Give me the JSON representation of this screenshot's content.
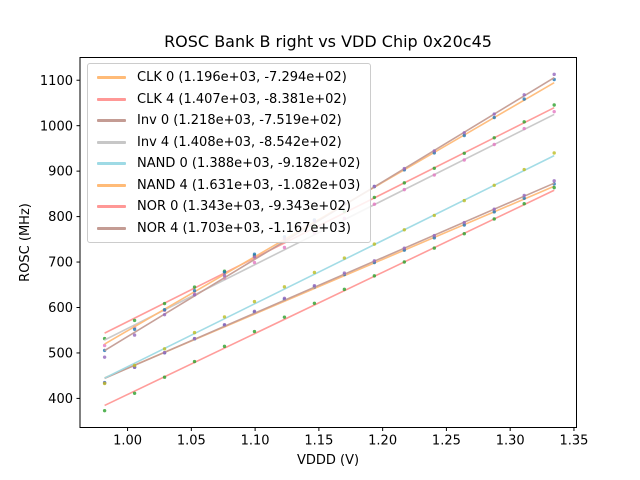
{
  "chart_data": {
    "type": "scatter",
    "title": "ROSC Bank B right vs VDD Chip 0x20c45",
    "xlabel": "VDDD (V)",
    "ylabel": "ROSC (MHz)",
    "grid": false,
    "legend_position": "upper left",
    "xlim": [
      0.9627,
      1.352
    ],
    "ylim": [
      336,
      1150
    ],
    "x_ticks": [
      "1.00",
      "1.05",
      "1.10",
      "1.15",
      "1.20",
      "1.25",
      "1.30",
      "1.35"
    ],
    "y_ticks": [
      "400",
      "500",
      "600",
      "700",
      "800",
      "900",
      "1000",
      "1100"
    ],
    "x": [
      0.982,
      1.0055,
      1.029,
      1.0525,
      1.076,
      1.0995,
      1.123,
      1.1465,
      1.17,
      1.1935,
      1.217,
      1.2405,
      1.264,
      1.2875,
      1.311,
      1.3345
    ],
    "series": [
      {
        "name": "CLK 0",
        "label": "CLK 0 (1.196e+03, -7.294e+02)",
        "fit": {
          "slope": 1196.0,
          "intercept": -729.4
        },
        "line_color": "#ffbb78",
        "marker_color": "#1f77b4",
        "y": [
          434.9,
          468.9,
          500.4,
          531.1,
          560.9,
          589.9,
          618.0,
          645.2,
          672.5,
          698.9,
          726.1,
          753.3,
          781.4,
          810.5,
          840.3,
          871.8
        ]
      },
      {
        "name": "CLK 4",
        "label": "CLK 4 (1.407e+03, -8.381e+02)",
        "fit": {
          "slope": 1407.0,
          "intercept": -838.1
        },
        "line_color": "#ff9896",
        "marker_color": "#2ca02c",
        "y": [
          531.6,
          571.6,
          608.7,
          644.8,
          679.8,
          713.9,
          747.0,
          779.0,
          811.1,
          842.2,
          874.2,
          906.3,
          939.3,
          973.4,
          1008.5,
          1045.5
        ]
      },
      {
        "name": "Inv 0",
        "label": "Inv 0 (1.218e+03, -7.519e+02)",
        "fit": {
          "slope": 1218.0,
          "intercept": -751.9
        },
        "line_color": "#c49c94",
        "marker_color": "#9467bd",
        "y": [
          433.8,
          468.4,
          500.5,
          531.7,
          562.2,
          591.7,
          620.3,
          648.0,
          675.8,
          702.7,
          730.4,
          758.1,
          786.8,
          816.3,
          846.6,
          878.7
        ]
      },
      {
        "name": "Inv 4",
        "label": "Inv 4 (1.408e+03, -8.542e+02)",
        "fit": {
          "slope": 1408.0,
          "intercept": -854.2
        },
        "line_color": "#c7c7c7",
        "marker_color": "#e377c2",
        "y": [
          516.5,
          556.5,
          593.6,
          629.7,
          664.8,
          698.9,
          732.0,
          764.1,
          796.2,
          827.2,
          859.3,
          891.4,
          924.5,
          958.6,
          993.7,
          1030.8
        ]
      },
      {
        "name": "NAND 0",
        "label": "NAND 0 (1.388e+03, -9.182e+02)",
        "fit": {
          "slope": 1388.0,
          "intercept": -918.2
        },
        "line_color": "#9edae5",
        "marker_color": "#bcbd22",
        "y": [
          432.9,
          472.4,
          509.1,
          544.7,
          579.3,
          612.9,
          645.5,
          677.1,
          708.8,
          739.4,
          771.0,
          802.6,
          835.2,
          868.9,
          903.5,
          940.0
        ]
      },
      {
        "name": "NAND 4",
        "label": "NAND 4 (1.631e+03, -1.082e+03)",
        "fit": {
          "slope": 1631.0,
          "intercept": -1082.0
        },
        "line_color": "#ffbb78",
        "marker_color": "#1f77b4",
        "y": [
          505.6,
          552.1,
          595.1,
          636.9,
          677.7,
          717.2,
          755.5,
          792.6,
          829.8,
          865.8,
          902.9,
          940.1,
          978.4,
          1017.9,
          1058.5,
          1101.6
        ]
      },
      {
        "name": "NOR 0",
        "label": "NOR 0 (1.343e+03, -9.343e+02)",
        "fit": {
          "slope": 1343.0,
          "intercept": -934.3
        },
        "line_color": "#ff9896",
        "marker_color": "#2ca02c",
        "y": [
          373.0,
          411.3,
          446.6,
          481.1,
          514.6,
          547.1,
          578.7,
          609.3,
          639.9,
          669.6,
          700.1,
          730.7,
          762.3,
          794.8,
          828.3,
          863.7
        ]
      },
      {
        "name": "NOR 4",
        "label": "NOR 4 (1.703e+03, -1.167e+03)",
        "fit": {
          "slope": 1703.0,
          "intercept": -1167.0
        },
        "line_color": "#c49c94",
        "marker_color": "#9467bd",
        "y": [
          490.7,
          539.3,
          584.2,
          627.8,
          670.3,
          711.5,
          751.6,
          790.4,
          829.2,
          866.7,
          905.6,
          944.4,
          984.4,
          1025.6,
          1068.0,
          1113.0
        ]
      }
    ]
  }
}
